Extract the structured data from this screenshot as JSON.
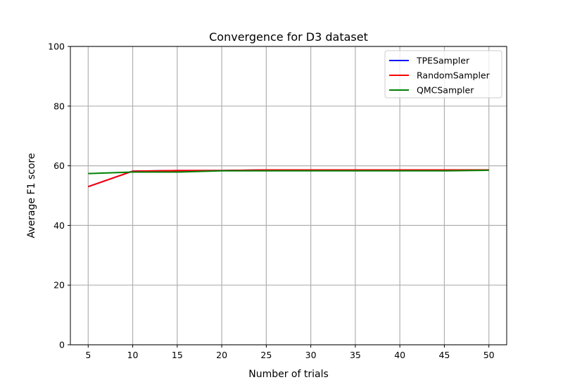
{
  "chart_data": {
    "type": "line",
    "title": "Convergence for D3 dataset",
    "xlabel": "Number of trials",
    "ylabel": "Average F1 score",
    "xlim": [
      3,
      52
    ],
    "ylim": [
      0,
      100
    ],
    "x": [
      5,
      10,
      15,
      20,
      25,
      30,
      35,
      40,
      45,
      50
    ],
    "xticks": [
      5,
      10,
      15,
      20,
      25,
      30,
      35,
      40,
      45,
      50
    ],
    "yticks": [
      0,
      20,
      40,
      60,
      80,
      100
    ],
    "grid": true,
    "legend_position": "top-right",
    "series": [
      {
        "name": "TPESampler",
        "color": "#0000ff",
        "values": [
          53.0,
          58.2,
          58.4,
          58.4,
          58.6,
          58.6,
          58.6,
          58.6,
          58.6,
          58.6
        ]
      },
      {
        "name": "RandomSampler",
        "color": "#ff0000",
        "values": [
          53.0,
          58.2,
          58.4,
          58.4,
          58.6,
          58.6,
          58.6,
          58.6,
          58.6,
          58.6
        ]
      },
      {
        "name": "QMCSampler",
        "color": "#008000",
        "values": [
          57.4,
          57.9,
          57.9,
          58.3,
          58.3,
          58.3,
          58.3,
          58.3,
          58.3,
          58.5
        ]
      }
    ]
  }
}
